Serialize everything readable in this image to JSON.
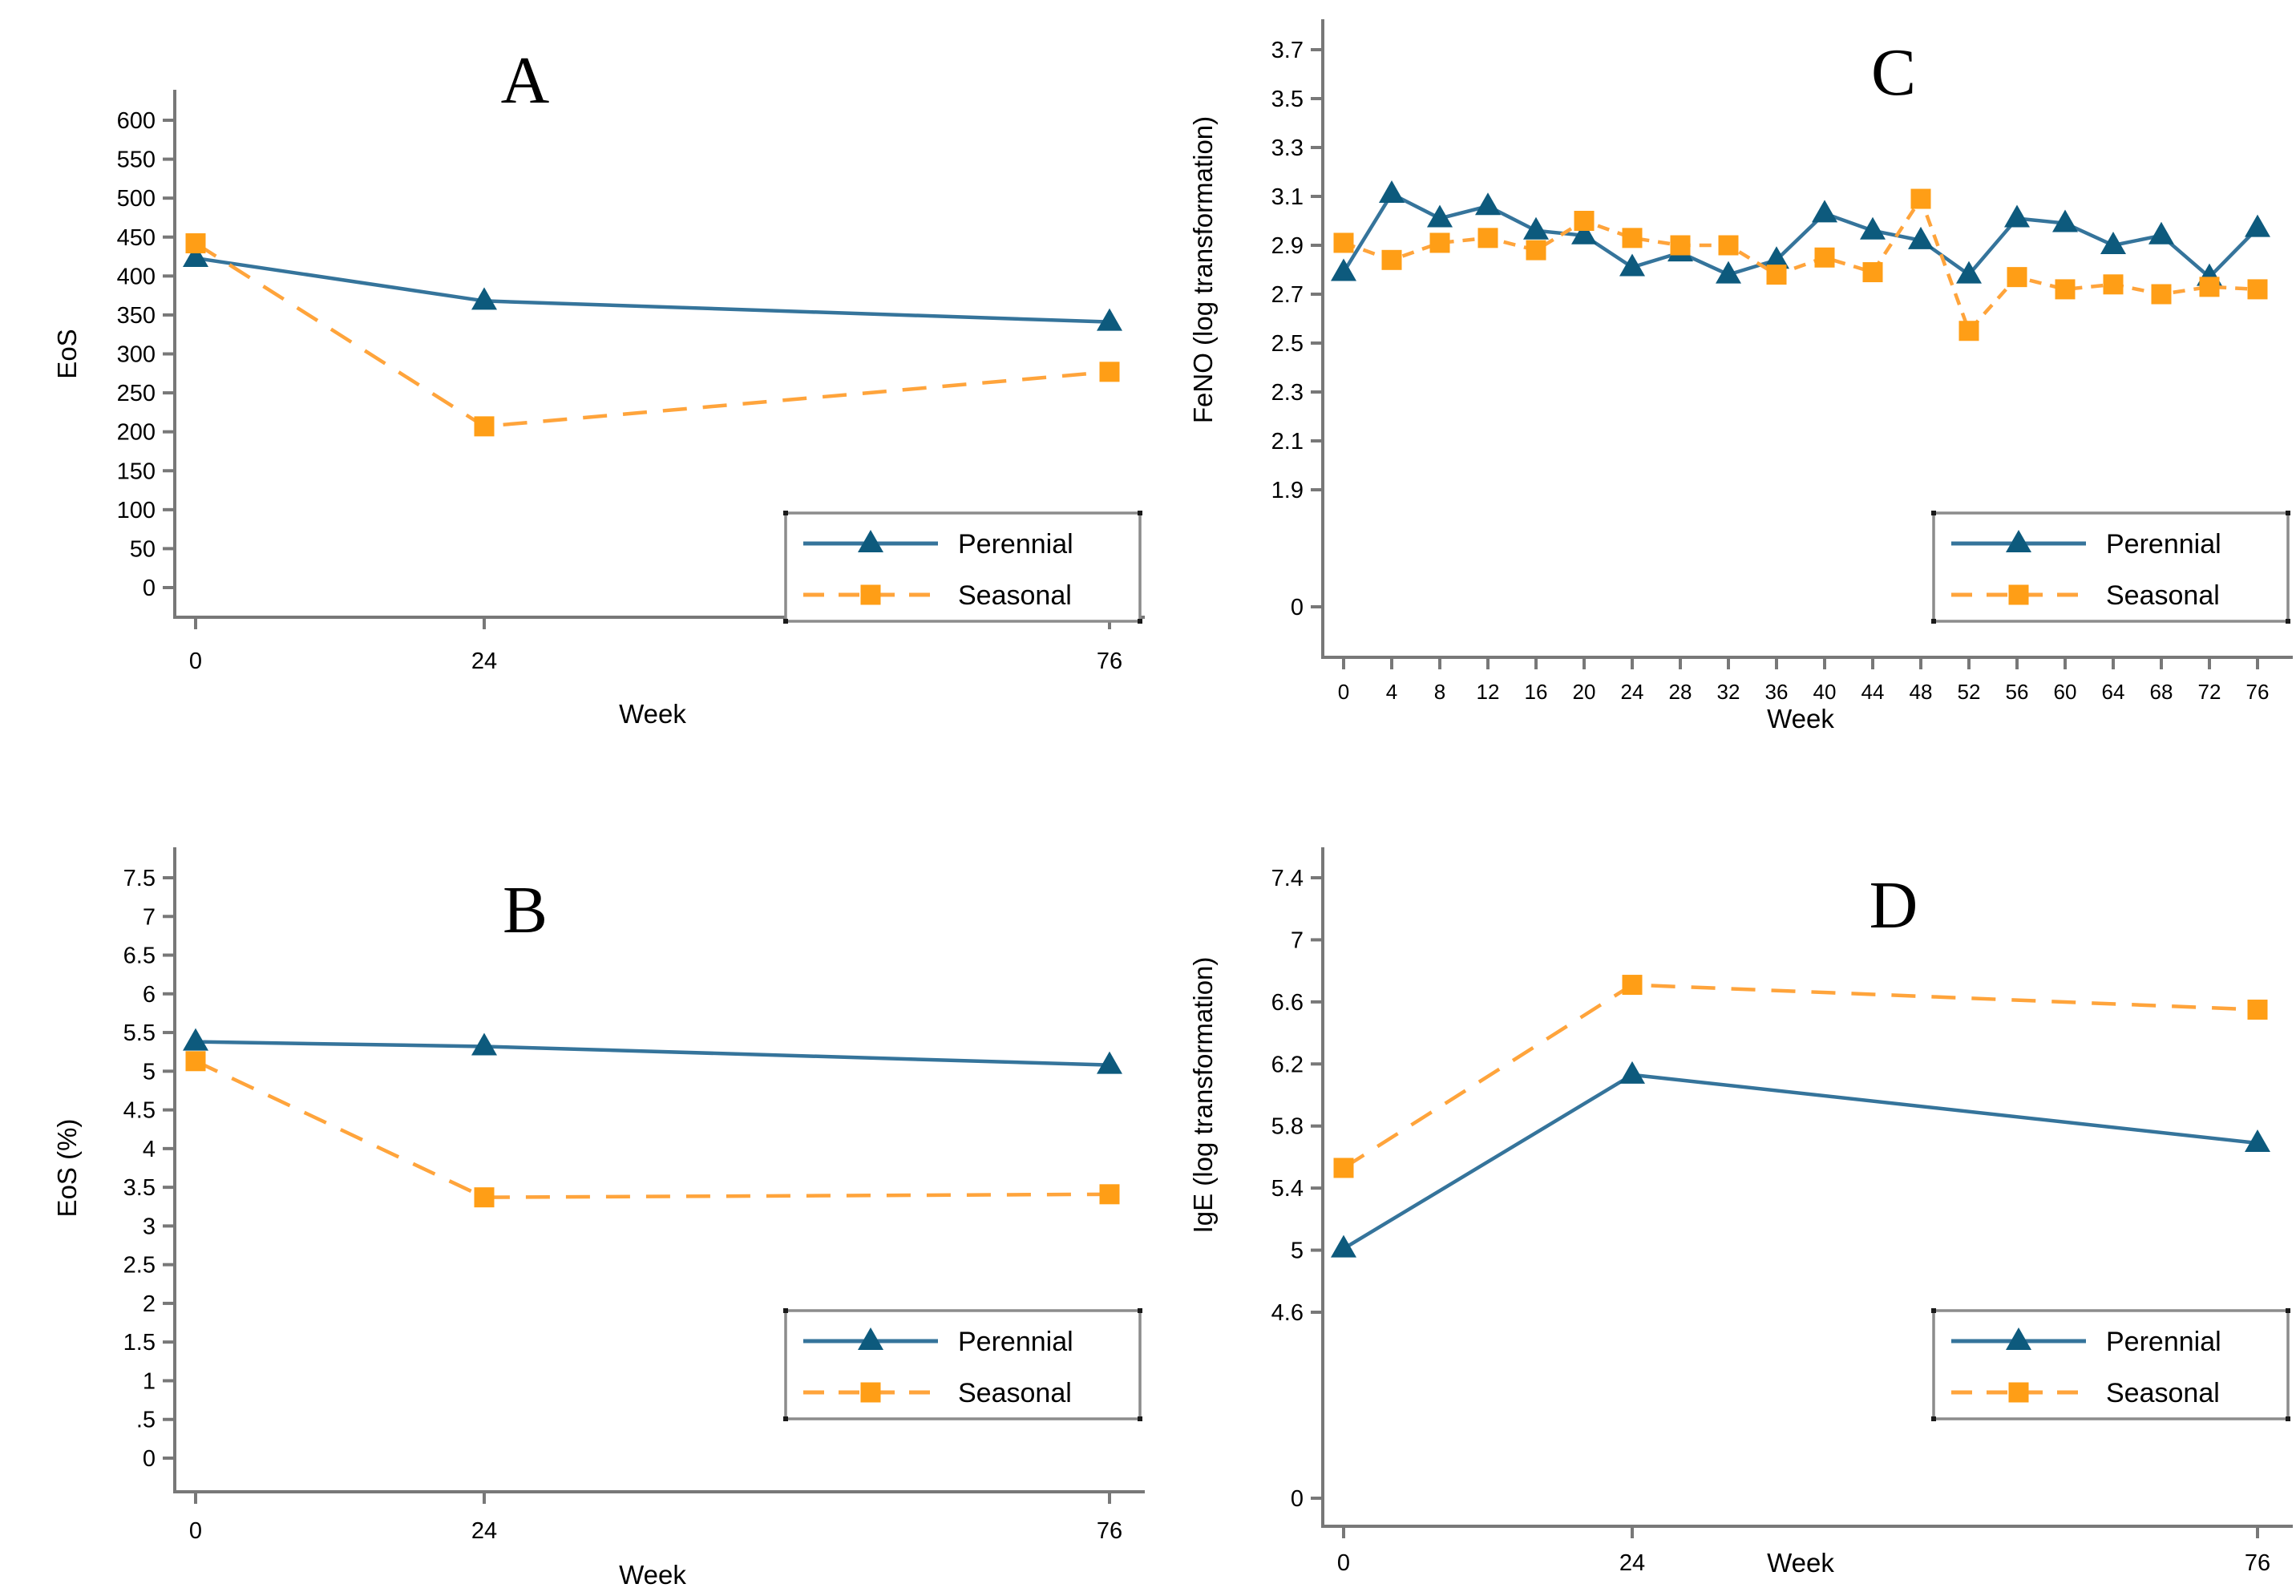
{
  "figure": {
    "background": "#ffffff",
    "xlabel": "Week",
    "legend_labels": {
      "perennial": "Perennial",
      "seasonal": "Seasonal"
    }
  },
  "colors": {
    "perennial_line": "#35749B",
    "perennial_marker": "#0D5A7D",
    "seasonal_line": "#FFA43B",
    "seasonal_marker": "#FF9E16",
    "axis": "#787878",
    "legend_border": "#8C8C8C",
    "text": "#000000",
    "background": "#FFFFFF"
  },
  "chart_data": [
    {
      "panel": "A",
      "type": "line",
      "title_letter": "A",
      "xlabel": "Week",
      "ylabel": "EoS",
      "x": [
        0,
        24,
        76
      ],
      "xtick_labels": [
        "0",
        "24",
        "76"
      ],
      "ytick_values": [
        600,
        550,
        500,
        450,
        400,
        350,
        300,
        250,
        200,
        150,
        100,
        50,
        0
      ],
      "ytick_labels": [
        "600",
        "550",
        "500",
        "450",
        "400",
        "350",
        "300",
        "250",
        "200",
        "150",
        "100",
        "50",
        "0"
      ],
      "ylim": [
        0,
        600
      ],
      "broken_axis": false,
      "grid": false,
      "legend_position": "bottom-right",
      "series": [
        {
          "name": "Perennial",
          "values": [
            423,
            368,
            341
          ]
        },
        {
          "name": "Seasonal",
          "values": [
            442,
            207,
            277
          ]
        }
      ]
    },
    {
      "panel": "C",
      "type": "line",
      "title_letter": "C",
      "xlabel": "Week",
      "ylabel": "FeNO (log transformation)",
      "x": [
        0,
        4,
        8,
        12,
        16,
        20,
        24,
        28,
        32,
        36,
        40,
        44,
        48,
        52,
        56,
        60,
        64,
        68,
        72,
        76
      ],
      "xtick_labels": [
        "0",
        "4",
        "8",
        "12",
        "16",
        "20",
        "24",
        "28",
        "32",
        "36",
        "40",
        "44",
        "48",
        "52",
        "56",
        "60",
        "64",
        "68",
        "72",
        "76"
      ],
      "ytick_values": [
        3.7,
        3.5,
        3.3,
        3.1,
        2.9,
        2.7,
        2.5,
        2.3,
        2.1,
        1.9,
        0
      ],
      "ytick_labels": [
        "3.7",
        "3.5",
        "3.3",
        "3.1",
        "2.9",
        "2.7",
        "2.5",
        "2.3",
        "2.1",
        "1.9",
        "0"
      ],
      "ylim": [
        1.9,
        3.7
      ],
      "broken_axis": true,
      "grid": false,
      "legend_position": "bottom-right",
      "series": [
        {
          "name": "Perennial",
          "values": [
            2.79,
            3.11,
            3.01,
            3.06,
            2.96,
            2.94,
            2.81,
            2.87,
            2.78,
            2.84,
            3.03,
            2.96,
            2.92,
            2.78,
            3.01,
            2.99,
            2.9,
            2.94,
            2.77,
            2.97
          ]
        },
        {
          "name": "Seasonal",
          "values": [
            2.91,
            2.84,
            2.91,
            2.93,
            2.88,
            3.0,
            2.93,
            2.9,
            2.9,
            2.78,
            2.85,
            2.79,
            3.09,
            2.55,
            2.77,
            2.72,
            2.74,
            2.7,
            2.73,
            2.72
          ]
        }
      ]
    },
    {
      "panel": "B",
      "type": "line",
      "title_letter": "B",
      "xlabel": "Week",
      "ylabel": "EoS (%)",
      "x": [
        0,
        24,
        76
      ],
      "xtick_labels": [
        "0",
        "24",
        "76"
      ],
      "ytick_values": [
        7.5,
        7,
        6.5,
        6,
        5.5,
        5,
        4.5,
        4,
        3.5,
        3,
        2.5,
        2,
        1.5,
        1,
        0.5,
        0
      ],
      "ytick_labels": [
        "7.5",
        "7",
        "6.5",
        "6",
        "5.5",
        "5",
        "4.5",
        "4",
        "3.5",
        "3",
        "2.5",
        "2",
        "1.5",
        "1",
        ".5",
        "0"
      ],
      "ylim": [
        0,
        7.5
      ],
      "broken_axis": false,
      "grid": false,
      "legend_position": "bottom-right",
      "series": [
        {
          "name": "Perennial",
          "values": [
            5.38,
            5.32,
            5.08
          ]
        },
        {
          "name": "Seasonal",
          "values": [
            5.13,
            3.37,
            3.41
          ]
        }
      ]
    },
    {
      "panel": "D",
      "type": "line",
      "title_letter": "D",
      "xlabel": "Week",
      "ylabel": "IgE (log transformation)",
      "x": [
        0,
        24,
        76
      ],
      "xtick_labels": [
        "0",
        "24",
        "76"
      ],
      "ytick_values": [
        7.4,
        7,
        6.6,
        6.2,
        5.8,
        5.4,
        5,
        4.6,
        0
      ],
      "ytick_labels": [
        "7.4",
        "7",
        "6.6",
        "6.2",
        "5.8",
        "5.4",
        "5",
        "4.6",
        "0"
      ],
      "ylim": [
        4.6,
        7.4
      ],
      "broken_axis": true,
      "grid": false,
      "legend_position": "bottom-right",
      "series": [
        {
          "name": "Perennial",
          "values": [
            5.01,
            6.13,
            5.69
          ]
        },
        {
          "name": "Seasonal",
          "values": [
            5.53,
            6.71,
            6.55
          ]
        }
      ]
    }
  ]
}
